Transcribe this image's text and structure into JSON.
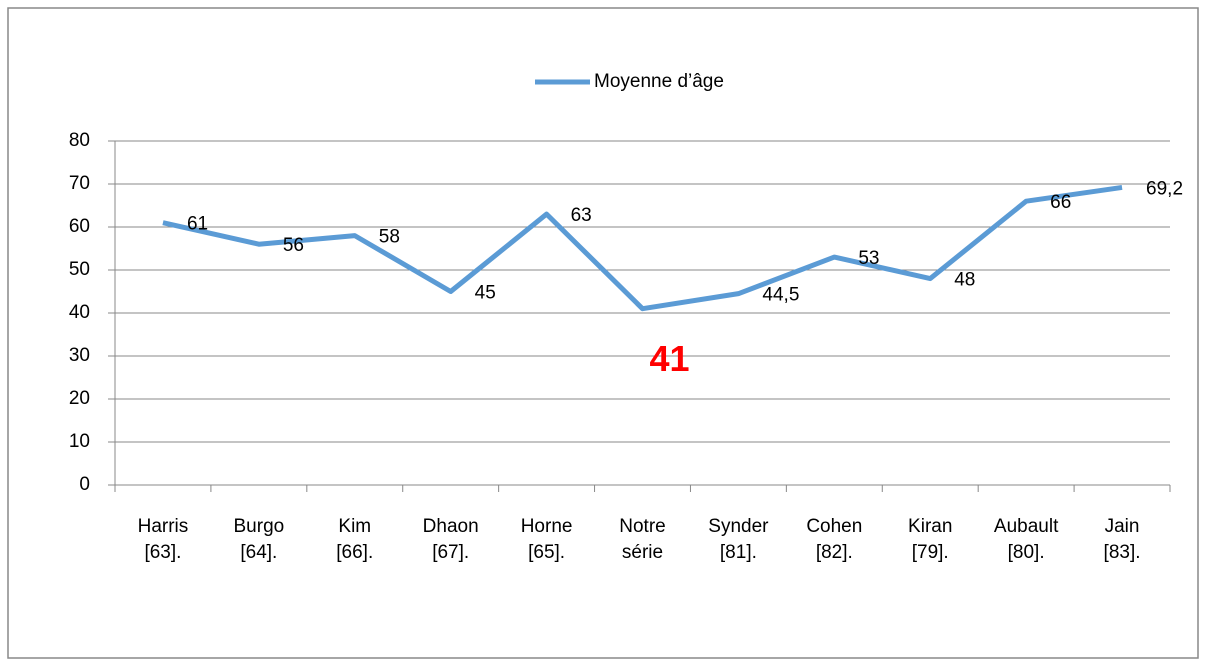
{
  "chart_data": {
    "type": "line",
    "legend": "top",
    "categories": [
      [
        "Harris",
        "[63]."
      ],
      [
        "Burgo",
        "[64]."
      ],
      [
        "Kim",
        "[66]."
      ],
      [
        "Dhaon",
        "[67]."
      ],
      [
        "Horne",
        "[65]."
      ],
      [
        "Notre",
        "série"
      ],
      [
        "Synder",
        "[81]."
      ],
      [
        "Cohen",
        "[82]."
      ],
      [
        "Kiran",
        "[79]."
      ],
      [
        "Aubault",
        "[80]."
      ],
      [
        "Jain",
        "[83]."
      ]
    ],
    "series": [
      {
        "name": "Moyenne d’âge",
        "color": "#5b9bd5",
        "values": [
          61,
          56,
          58,
          45,
          63,
          41,
          44.5,
          53,
          48,
          66,
          69.2
        ],
        "value_labels": [
          "61",
          "56",
          "58",
          "45",
          "63",
          "41",
          "44,5",
          "53",
          "48",
          "66",
          "69,2"
        ]
      }
    ],
    "highlight": {
      "index": 5,
      "color": "#ff0000"
    },
    "ylim": [
      0,
      80
    ],
    "yticks": [
      0,
      10,
      20,
      30,
      40,
      50,
      60,
      70,
      80
    ],
    "grid": true
  }
}
